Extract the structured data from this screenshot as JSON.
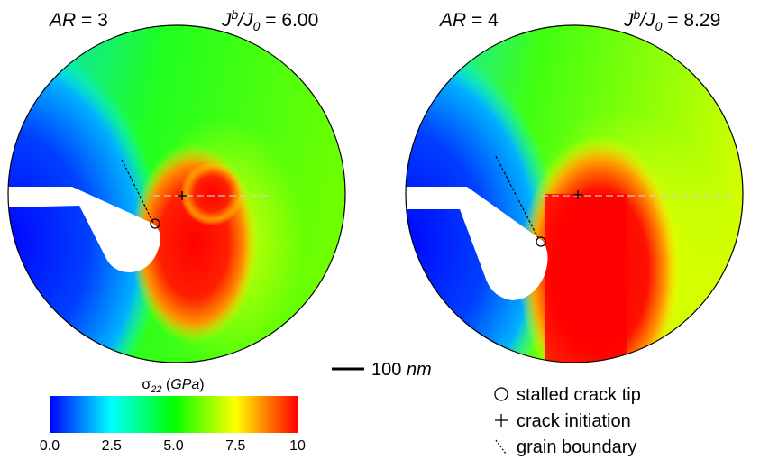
{
  "panels": [
    {
      "ar_label": "AR",
      "ar_value": "3",
      "ratio_label_main": "J",
      "ratio_label_sup": "b",
      "ratio_label_denom": "J",
      "ratio_label_sub": "0",
      "ratio_value": "6.00"
    },
    {
      "ar_label": "AR",
      "ar_value": "4",
      "ratio_label_main": "J",
      "ratio_label_sup": "b",
      "ratio_label_denom": "J",
      "ratio_label_sub": "0",
      "ratio_value": "8.29"
    }
  ],
  "scale_bar": {
    "value": "100",
    "unit": "nm"
  },
  "colorbar": {
    "symbol": "σ",
    "subscript": "22",
    "unit": "GPa",
    "ticks": [
      "0.0",
      "2.5",
      "5.0",
      "7.5",
      "10"
    ],
    "colors": [
      "#0000ff",
      "#00ffff",
      "#00ff00",
      "#ffff00",
      "#ff0000"
    ]
  },
  "legend": [
    {
      "marker": "○",
      "label": "stalled crack tip"
    },
    {
      "marker": "+",
      "label": "crack initiation"
    },
    {
      "marker": "`",
      "label": "grain boundary"
    }
  ]
}
